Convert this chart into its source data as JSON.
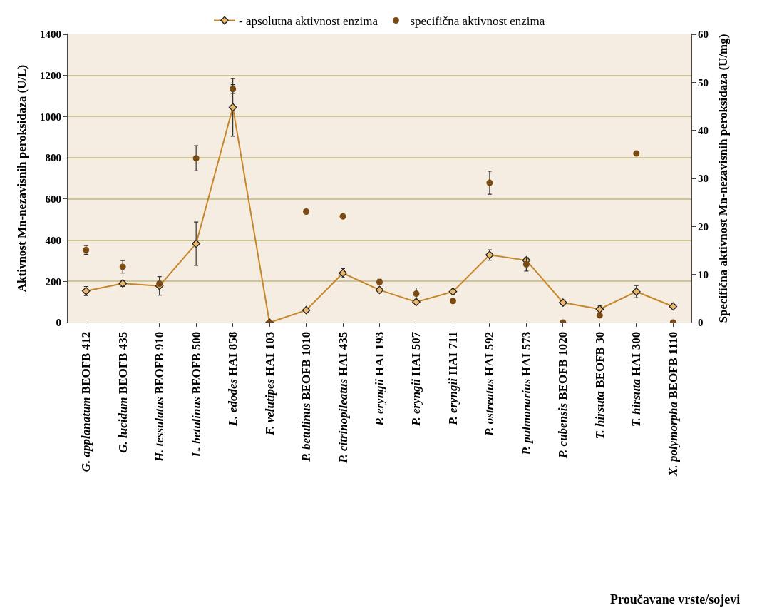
{
  "chart_data": {
    "type": "line",
    "annotations": [
      "Proučavane vrste/sojevi"
    ],
    "ylabel": "Aktivnost Mn-nezavisnih peroksidaza (U/L)",
    "y2label": "Specifična aktivnost Mn-nezavisnih peroksidaza (U/mg)",
    "categories": [
      "G. applanatum BEOFB 412",
      "G. lucidum BEOFB 435",
      "H. tessulatus BEOFB 910",
      "L. betulinus BEOFB 500",
      "L. edodes HAI 858",
      "F. velutipes HAI 103",
      "P. betulinus BEOFB 1010",
      "P. citrinopileatus HAI 435",
      "P. eryngii HAI 193",
      "P. eryngii HAI 507",
      "P. eryngii HAI 711",
      "P. ostreatus HAI 592",
      "P. pulmonarius HAI 573",
      "P. cubensis BEOFB 1020",
      "T. hirsuta BEOFB 30",
      "T. hirsuta HAI 300",
      "X. polymorpha BEOFB 1110"
    ],
    "series": [
      {
        "name": "- apsolutna aktivnost enzima",
        "marker": "diamond",
        "color": "#c8862a",
        "values": [
          153,
          190,
          178,
          383,
          1045,
          0,
          60,
          240,
          158,
          100,
          150,
          328,
          302,
          97,
          65,
          150,
          78
        ],
        "errors": [
          22,
          15,
          45,
          105,
          140,
          null,
          null,
          22,
          10,
          null,
          null,
          25,
          12,
          null,
          18,
          30,
          10
        ]
      },
      {
        "name": "specifična aktivnost enzima",
        "type": "scatter",
        "marker": "circle",
        "axis": "y2",
        "color": "#7a4a12",
        "values": [
          15.1,
          11.6,
          8.1,
          34.2,
          48.6,
          0,
          23.1,
          22.1,
          8.4,
          6.0,
          4.5,
          29.1,
          12.1,
          0,
          1.5,
          35.2,
          0
        ],
        "errors": [
          0.9,
          1.3,
          null,
          2.6,
          0.9,
          null,
          null,
          null,
          0.6,
          1.2,
          null,
          2.4,
          1.4,
          null,
          null,
          null,
          null
        ]
      }
    ],
    "ylim": [
      0,
      1400
    ],
    "yticks": [
      0,
      200,
      400,
      600,
      800,
      1000,
      1200,
      1400
    ],
    "y2lim": [
      0,
      60
    ],
    "y2ticks": [
      0,
      10,
      20,
      30,
      40,
      50,
      60
    ],
    "grid": "y",
    "legend": "top"
  }
}
